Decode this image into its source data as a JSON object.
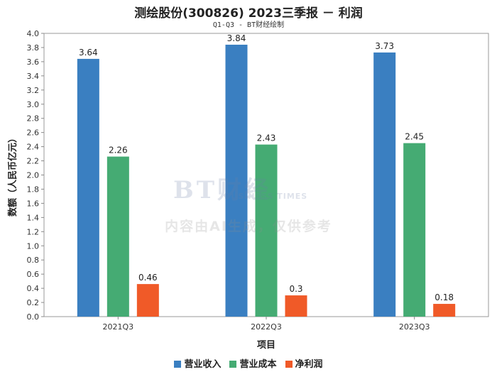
{
  "chart_data": {
    "type": "bar",
    "title": "测绘股份(300826) 2023三季报 － 利润",
    "subtitle": "Q1-Q3 - BT财经绘制",
    "xlabel": "项目",
    "ylabel": "数额（人民币亿元）",
    "ylim": [
      0,
      4.0
    ],
    "ytick_step": 0.2,
    "yticks": [
      "0.0",
      "0.2",
      "0.4",
      "0.6",
      "0.8",
      "1.0",
      "1.2",
      "1.4",
      "1.6",
      "1.8",
      "2.0",
      "2.2",
      "2.4",
      "2.6",
      "2.8",
      "3.0",
      "3.2",
      "3.4",
      "3.6",
      "3.8",
      "4.0"
    ],
    "categories": [
      "2021Q3",
      "2022Q3",
      "2023Q3"
    ],
    "series": [
      {
        "name": "营业收入",
        "color": "#3a7fc1",
        "values": [
          3.64,
          3.84,
          3.73
        ],
        "labels": [
          "3.64",
          "3.84",
          "3.73"
        ]
      },
      {
        "name": "营业成本",
        "color": "#45ab73",
        "values": [
          2.26,
          2.43,
          2.45
        ],
        "labels": [
          "2.26",
          "2.43",
          "2.45"
        ]
      },
      {
        "name": "净利润",
        "color": "#f05a28",
        "values": [
          0.46,
          0.3,
          0.18
        ],
        "labels": [
          "0.46",
          "0.3",
          "0.18"
        ]
      }
    ],
    "legend_position": "bottom",
    "grid": false
  },
  "watermark": {
    "logo": "BT财经",
    "sub": "BUSINESS TIMES",
    "text": "内容由AI生成，仅供参考"
  }
}
